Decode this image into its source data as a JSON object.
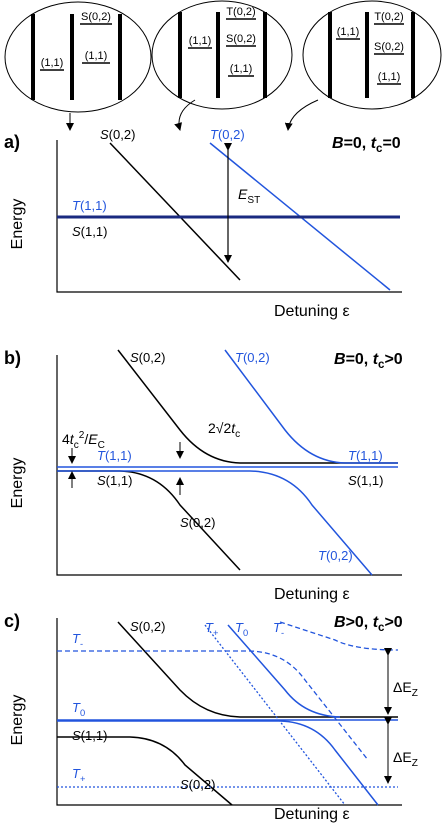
{
  "insets": [
    {
      "labels": [
        "(1,1)",
        "S(0,2)",
        "(1,1)"
      ]
    },
    {
      "labels": [
        "(1,1)",
        "T(0,2)",
        "S(0,2)",
        "(1,1)"
      ]
    },
    {
      "labels": [
        "(1,1)",
        "T(0,2)",
        "S(0,2)",
        "(1,1)"
      ]
    }
  ],
  "panels": [
    {
      "label": "a)",
      "condition": [
        "B",
        "=0, ",
        "t",
        "c",
        "=0"
      ],
      "y_axis": "Energy",
      "x_axis": "Detuning ε",
      "state_labels": [
        [
          "S",
          "(0,2)"
        ],
        [
          "T",
          "(0,2)"
        ],
        [
          "T",
          "(1,1)"
        ],
        [
          "S",
          "(1,1)"
        ]
      ],
      "annotations": [
        [
          "E",
          "ST"
        ]
      ]
    },
    {
      "label": "b)",
      "condition": [
        "B",
        "=0, ",
        "t",
        "c",
        ">0"
      ],
      "y_axis": "Energy",
      "x_axis": "Detuning ε",
      "state_labels": [
        [
          "S",
          "(0,2)"
        ],
        [
          "T",
          "(0,2)"
        ],
        [
          "T",
          "(1,1)"
        ],
        [
          "T",
          "(1,1)"
        ],
        [
          "S",
          "(1,1)"
        ],
        [
          "S",
          "(1,1)"
        ],
        [
          "S",
          "(0,2)"
        ],
        [
          "T",
          "(0,2)"
        ]
      ],
      "annotations": [
        [
          "4",
          "t",
          "c",
          "2",
          "/",
          "E",
          "C"
        ],
        [
          "2",
          "√2",
          "t",
          "c"
        ]
      ]
    },
    {
      "label": "c)",
      "condition": [
        "B",
        ">0, ",
        "t",
        "c",
        ">0"
      ],
      "y_axis": "Energy",
      "x_axis": "Detuning ε",
      "state_labels": [
        [
          "S",
          "(0,2)"
        ],
        [
          "T",
          "+"
        ],
        [
          "T",
          "0"
        ],
        [
          "T",
          "-"
        ],
        [
          "T",
          "-"
        ],
        [
          "T",
          "0"
        ],
        [
          "S",
          "(1,1)"
        ],
        [
          "T",
          "+"
        ],
        [
          "S",
          "(0,2)"
        ]
      ],
      "annotations": [
        [
          "ΔE",
          "Z"
        ],
        [
          "ΔE",
          "Z"
        ]
      ]
    }
  ]
}
